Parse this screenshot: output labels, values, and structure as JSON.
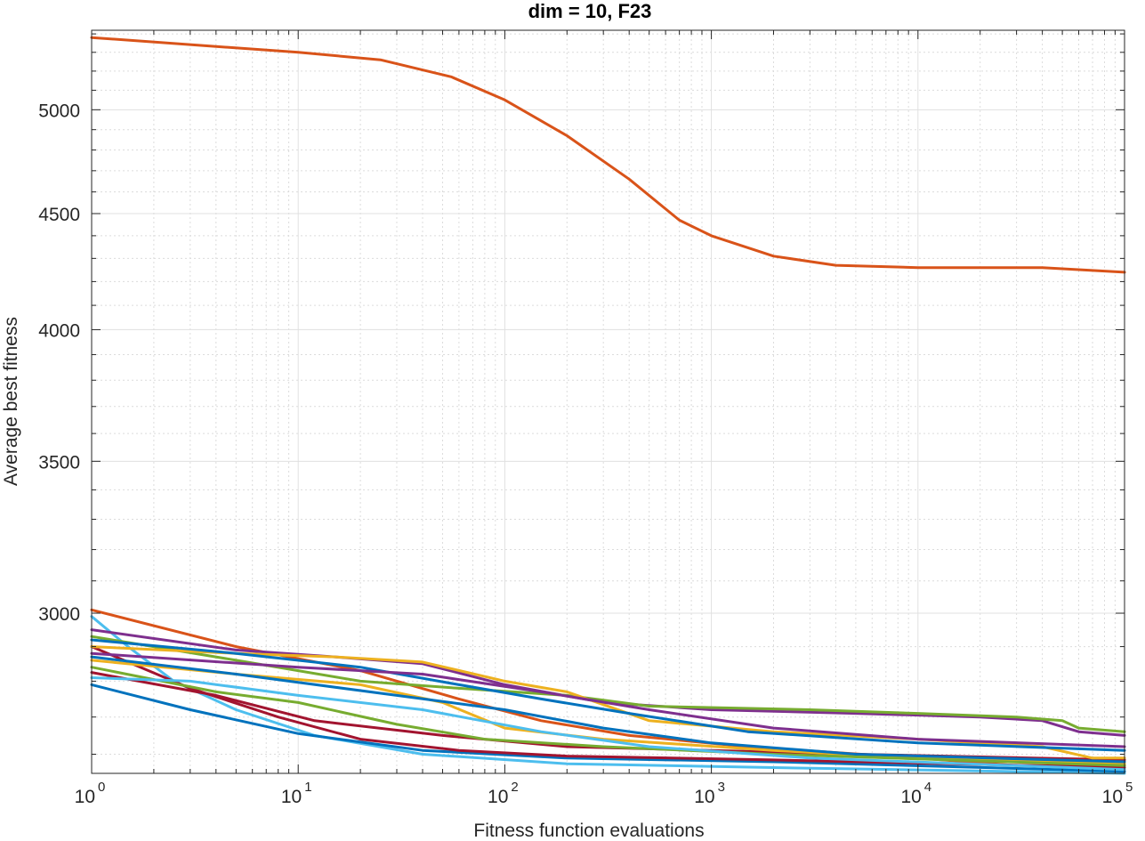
{
  "chart_data": {
    "type": "line",
    "title": "dim = 10,  F23",
    "xlabel": "Fitness function evaluations",
    "ylabel": "Average best fitness",
    "xscale": "log",
    "yscale": "log",
    "xlim": [
      1,
      100000
    ],
    "ylim": [
      2550,
      5420
    ],
    "grid": true,
    "minor_grid": true,
    "x_ticks": [
      {
        "base": "10",
        "exp": "0",
        "value": 1
      },
      {
        "base": "10",
        "exp": "1",
        "value": 10
      },
      {
        "base": "10",
        "exp": "2",
        "value": 100
      },
      {
        "base": "10",
        "exp": "3",
        "value": 1000
      },
      {
        "base": "10",
        "exp": "4",
        "value": 10000
      },
      {
        "base": "10",
        "exp": "5",
        "value": 100000
      }
    ],
    "y_ticks": [
      {
        "label": "3000",
        "value": 3000
      },
      {
        "label": "3500",
        "value": 3500
      },
      {
        "label": "4000",
        "value": 4000
      },
      {
        "label": "4500",
        "value": 4500
      },
      {
        "label": "5000",
        "value": 5000
      }
    ],
    "series": [
      {
        "color": "#D95319",
        "points": [
          [
            1,
            5380
          ],
          [
            10,
            5300
          ],
          [
            25,
            5260
          ],
          [
            55,
            5170
          ],
          [
            100,
            5050
          ],
          [
            200,
            4870
          ],
          [
            400,
            4660
          ],
          [
            700,
            4470
          ],
          [
            1000,
            4400
          ],
          [
            2000,
            4310
          ],
          [
            4000,
            4270
          ],
          [
            10000,
            4260
          ],
          [
            40000,
            4260
          ],
          [
            100000,
            4240
          ]
        ]
      },
      {
        "color": "#D95319",
        "points": [
          [
            1,
            3010
          ],
          [
            5,
            2900
          ],
          [
            20,
            2830
          ],
          [
            60,
            2750
          ],
          [
            150,
            2690
          ],
          [
            400,
            2650
          ],
          [
            1500,
            2620
          ],
          [
            10000,
            2590
          ],
          [
            30000,
            2570
          ],
          [
            100000,
            2570
          ]
        ]
      },
      {
        "color": "#4DBEEE",
        "points": [
          [
            1,
            2990
          ],
          [
            1.5,
            2900
          ],
          [
            2.5,
            2800
          ],
          [
            5,
            2720
          ],
          [
            12,
            2650
          ],
          [
            40,
            2600
          ],
          [
            200,
            2575
          ],
          [
            2000,
            2565
          ],
          [
            100000,
            2550
          ]
        ]
      },
      {
        "color": "#0072BD",
        "points": [
          [
            1,
            2790
          ],
          [
            3,
            2720
          ],
          [
            10,
            2655
          ],
          [
            40,
            2610
          ],
          [
            200,
            2590
          ],
          [
            2000,
            2580
          ],
          [
            100000,
            2555
          ]
        ]
      },
      {
        "color": "#A2142F",
        "points": [
          [
            1,
            2900
          ],
          [
            3,
            2780
          ],
          [
            8,
            2700
          ],
          [
            20,
            2640
          ],
          [
            60,
            2610
          ],
          [
            200,
            2595
          ],
          [
            2000,
            2585
          ],
          [
            100000,
            2565
          ]
        ]
      },
      {
        "color": "#A2142F",
        "points": [
          [
            1,
            2825
          ],
          [
            4,
            2760
          ],
          [
            12,
            2690
          ],
          [
            50,
            2650
          ],
          [
            200,
            2620
          ],
          [
            1000,
            2610
          ],
          [
            5000,
            2600
          ],
          [
            100000,
            2585
          ]
        ]
      },
      {
        "color": "#7E2F8E",
        "points": [
          [
            1,
            2950
          ],
          [
            5,
            2890
          ],
          [
            15,
            2870
          ],
          [
            40,
            2850
          ],
          [
            100,
            2790
          ],
          [
            300,
            2740
          ],
          [
            1000,
            2720
          ],
          [
            5000,
            2710
          ],
          [
            20000,
            2700
          ],
          [
            40000,
            2690
          ],
          [
            60000,
            2660
          ],
          [
            100000,
            2650
          ]
        ]
      },
      {
        "color": "#77AC30",
        "points": [
          [
            1,
            2930
          ],
          [
            5,
            2860
          ],
          [
            20,
            2800
          ],
          [
            60,
            2780
          ],
          [
            200,
            2760
          ],
          [
            500,
            2730
          ],
          [
            3000,
            2720
          ],
          [
            10000,
            2710
          ],
          [
            30000,
            2700
          ],
          [
            50000,
            2690
          ],
          [
            60000,
            2670
          ],
          [
            100000,
            2660
          ]
        ]
      },
      {
        "color": "#EDB120",
        "points": [
          [
            1,
            2900
          ],
          [
            5,
            2880
          ],
          [
            15,
            2870
          ],
          [
            40,
            2855
          ],
          [
            100,
            2800
          ],
          [
            200,
            2770
          ],
          [
            500,
            2690
          ],
          [
            2000,
            2660
          ],
          [
            10000,
            2640
          ],
          [
            40000,
            2620
          ],
          [
            70000,
            2590
          ],
          [
            100000,
            2590
          ]
        ]
      },
      {
        "color": "#EDB120",
        "points": [
          [
            1,
            2860
          ],
          [
            5,
            2820
          ],
          [
            20,
            2790
          ],
          [
            50,
            2740
          ],
          [
            100,
            2670
          ],
          [
            300,
            2640
          ],
          [
            2000,
            2610
          ],
          [
            10000,
            2590
          ],
          [
            100000,
            2575
          ]
        ]
      },
      {
        "color": "#0072BD",
        "points": [
          [
            1,
            2920
          ],
          [
            5,
            2880
          ],
          [
            20,
            2840
          ],
          [
            60,
            2790
          ],
          [
            150,
            2750
          ],
          [
            400,
            2710
          ],
          [
            1500,
            2660
          ],
          [
            10000,
            2630
          ],
          [
            100000,
            2610
          ]
        ]
      },
      {
        "color": "#0072BD",
        "points": [
          [
            1,
            2870
          ],
          [
            5,
            2820
          ],
          [
            30,
            2760
          ],
          [
            100,
            2720
          ],
          [
            300,
            2670
          ],
          [
            1000,
            2630
          ],
          [
            5000,
            2600
          ],
          [
            100000,
            2580
          ]
        ]
      },
      {
        "color": "#77AC30",
        "points": [
          [
            1,
            2840
          ],
          [
            4,
            2770
          ],
          [
            10,
            2740
          ],
          [
            30,
            2680
          ],
          [
            80,
            2640
          ],
          [
            300,
            2620
          ],
          [
            2000,
            2600
          ],
          [
            100000,
            2570
          ]
        ]
      },
      {
        "color": "#4DBEEE",
        "points": [
          [
            1,
            2810
          ],
          [
            3,
            2800
          ],
          [
            10,
            2760
          ],
          [
            40,
            2720
          ],
          [
            150,
            2660
          ],
          [
            500,
            2620
          ],
          [
            3000,
            2590
          ],
          [
            100000,
            2560
          ]
        ]
      },
      {
        "color": "#7E2F8E",
        "points": [
          [
            1,
            2880
          ],
          [
            10,
            2840
          ],
          [
            40,
            2820
          ],
          [
            150,
            2770
          ],
          [
            500,
            2720
          ],
          [
            2000,
            2670
          ],
          [
            10000,
            2640
          ],
          [
            100000,
            2620
          ]
        ]
      }
    ]
  }
}
